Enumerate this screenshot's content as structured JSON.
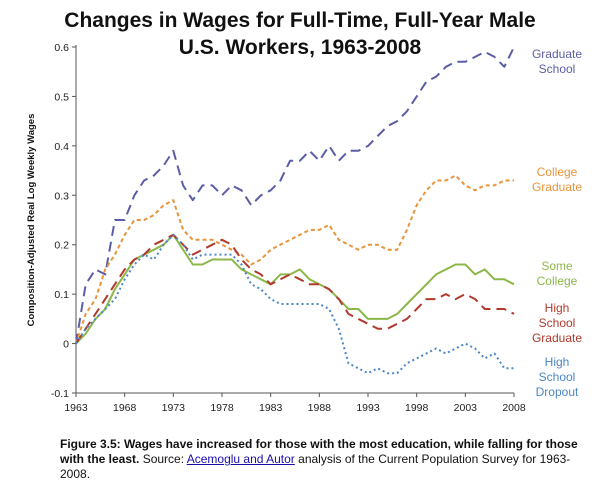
{
  "chart_data": {
    "type": "line",
    "title_lines": [
      "Changes in Wages for Full-Time, Full-Year Male",
      "U.S. Workers, 1963-2008"
    ],
    "ylabel": "Composition-Adjusted Real Log Weekly Wages",
    "xlabel": "",
    "xlim": [
      1963,
      2008
    ],
    "ylim": [
      -0.1,
      0.6
    ],
    "x_ticks": [
      "1963",
      "1968",
      "1973",
      "1978",
      "1983",
      "1988",
      "1993",
      "1998",
      "2003",
      "2008"
    ],
    "y_ticks": [
      "0.6",
      "0.5",
      "0.4",
      "0.3",
      "0.2",
      "0.1",
      "0",
      "-0.1"
    ],
    "grid": false,
    "legend": "right, inline labels",
    "x": [
      1963,
      1964,
      1965,
      1966,
      1967,
      1968,
      1969,
      1970,
      1971,
      1972,
      1973,
      1974,
      1975,
      1976,
      1977,
      1978,
      1979,
      1980,
      1981,
      1982,
      1983,
      1984,
      1985,
      1986,
      1987,
      1988,
      1989,
      1990,
      1991,
      1992,
      1993,
      1994,
      1995,
      1996,
      1997,
      1998,
      1999,
      2000,
      2001,
      2002,
      2003,
      2004,
      2005,
      2006,
      2007,
      2008
    ],
    "series": [
      {
        "name": "Graduate School",
        "label_lines": [
          "Graduate",
          "School"
        ],
        "color": "#5b5ea6",
        "dash": "10,6",
        "values": [
          0.0,
          0.12,
          0.15,
          0.14,
          0.25,
          0.25,
          0.3,
          0.33,
          0.34,
          0.36,
          0.39,
          0.32,
          0.29,
          0.32,
          0.32,
          0.3,
          0.32,
          0.31,
          0.28,
          0.3,
          0.31,
          0.33,
          0.37,
          0.37,
          0.39,
          0.37,
          0.4,
          0.37,
          0.39,
          0.39,
          0.4,
          0.42,
          0.44,
          0.45,
          0.47,
          0.5,
          0.53,
          0.54,
          0.56,
          0.57,
          0.57,
          0.58,
          0.59,
          0.58,
          0.56,
          0.6
        ]
      },
      {
        "name": "College Graduate",
        "label_lines": [
          "College",
          "Graduate"
        ],
        "color": "#e8943a",
        "dash": "4,3",
        "values": [
          0.0,
          0.06,
          0.09,
          0.15,
          0.18,
          0.22,
          0.25,
          0.25,
          0.26,
          0.28,
          0.29,
          0.23,
          0.21,
          0.21,
          0.21,
          0.2,
          0.19,
          0.18,
          0.16,
          0.17,
          0.19,
          0.2,
          0.21,
          0.22,
          0.23,
          0.23,
          0.24,
          0.21,
          0.2,
          0.19,
          0.2,
          0.2,
          0.19,
          0.19,
          0.23,
          0.28,
          0.31,
          0.33,
          0.33,
          0.34,
          0.32,
          0.31,
          0.32,
          0.32,
          0.33,
          0.33
        ]
      },
      {
        "name": "Some College",
        "label_lines": [
          "Some",
          "College"
        ],
        "color": "#8cb84a",
        "dash": "",
        "values": [
          0.0,
          0.02,
          0.05,
          0.07,
          0.11,
          0.14,
          0.17,
          0.18,
          0.19,
          0.2,
          0.22,
          0.19,
          0.16,
          0.16,
          0.17,
          0.17,
          0.17,
          0.15,
          0.14,
          0.13,
          0.12,
          0.14,
          0.14,
          0.15,
          0.13,
          0.12,
          0.11,
          0.09,
          0.07,
          0.07,
          0.05,
          0.05,
          0.05,
          0.06,
          0.08,
          0.1,
          0.12,
          0.14,
          0.15,
          0.16,
          0.16,
          0.14,
          0.15,
          0.13,
          0.13,
          0.12
        ]
      },
      {
        "name": "High School Graduate",
        "label_lines": [
          "High",
          "School",
          "Graduate"
        ],
        "color": "#b03a2e",
        "dash": "10,6",
        "values": [
          0.0,
          0.03,
          0.06,
          0.09,
          0.12,
          0.15,
          0.17,
          0.18,
          0.2,
          0.21,
          0.22,
          0.2,
          0.18,
          0.19,
          0.2,
          0.21,
          0.2,
          0.17,
          0.15,
          0.14,
          0.12,
          0.13,
          0.14,
          0.13,
          0.12,
          0.12,
          0.11,
          0.09,
          0.06,
          0.05,
          0.04,
          0.03,
          0.03,
          0.04,
          0.05,
          0.07,
          0.09,
          0.09,
          0.1,
          0.09,
          0.1,
          0.09,
          0.07,
          0.07,
          0.07,
          0.06
        ]
      },
      {
        "name": "High School Dropout",
        "label_lines": [
          "High",
          "School",
          "Dropout"
        ],
        "color": "#4a86c8",
        "dash": "2,3",
        "values": [
          0.0,
          0.03,
          0.05,
          0.07,
          0.09,
          0.13,
          0.16,
          0.18,
          0.17,
          0.2,
          0.22,
          0.2,
          0.17,
          0.18,
          0.18,
          0.18,
          0.18,
          0.16,
          0.12,
          0.11,
          0.09,
          0.08,
          0.08,
          0.08,
          0.08,
          0.08,
          0.07,
          0.03,
          -0.04,
          -0.05,
          -0.06,
          -0.05,
          -0.06,
          -0.06,
          -0.04,
          -0.03,
          -0.02,
          -0.01,
          -0.02,
          -0.01,
          -0.0,
          -0.01,
          -0.03,
          -0.02,
          -0.05,
          -0.05
        ]
      }
    ]
  },
  "caption": {
    "figure_label": "Figure 3.5: Wages have increased for those with the most education, while falling for those with the least.",
    "source_prefix": " Source: ",
    "source_link": "Acemoglu and Autor",
    "source_suffix": " analysis of the Current Population Survey for 1963-2008."
  }
}
